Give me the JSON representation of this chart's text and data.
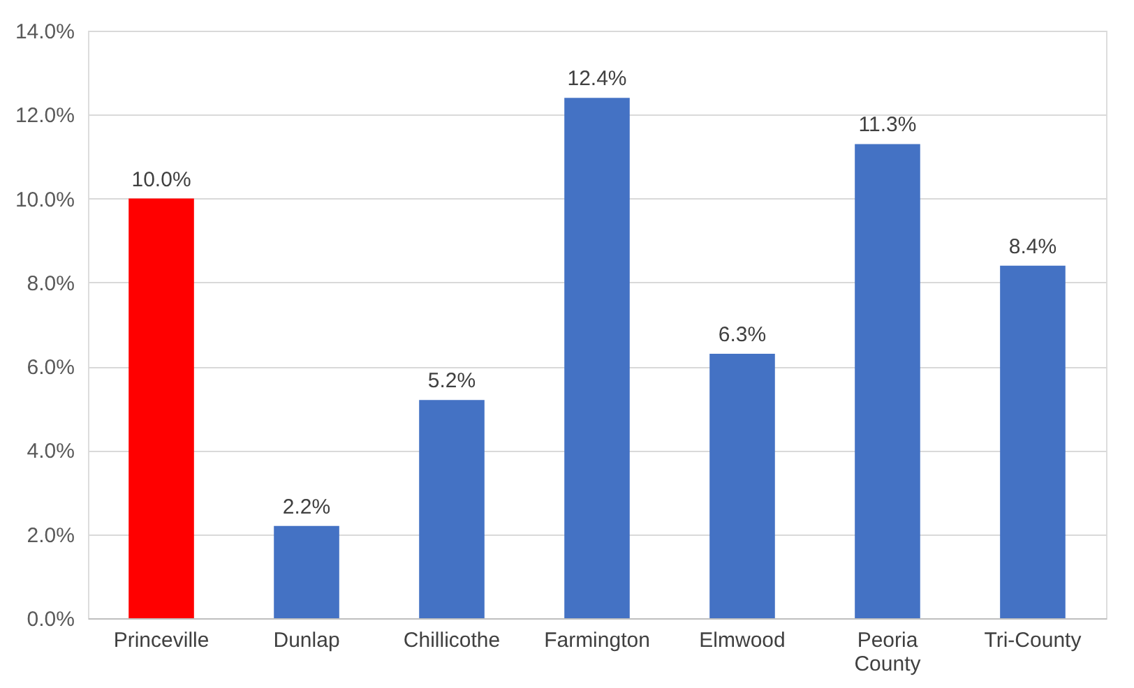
{
  "chart_data": {
    "type": "bar",
    "categories": [
      "Princeville",
      "Dunlap",
      "Chillicothe",
      "Farmington",
      "Elmwood",
      "Peoria County",
      "Tri-County"
    ],
    "values": [
      10.0,
      2.2,
      5.2,
      12.4,
      6.3,
      11.3,
      8.4
    ],
    "colors": [
      "#ff0000",
      "#4472c4",
      "#4472c4",
      "#4472c4",
      "#4472c4",
      "#4472c4",
      "#4472c4"
    ],
    "value_labels": [
      "10.0%",
      "2.2%",
      "5.2%",
      "12.4%",
      "6.3%",
      "11.3%",
      "8.4%"
    ],
    "ylim": [
      0,
      14
    ],
    "yticks": [
      {
        "value": 0,
        "label": "0.0%"
      },
      {
        "value": 2,
        "label": "2.0%"
      },
      {
        "value": 4,
        "label": "4.0%"
      },
      {
        "value": 6,
        "label": "6.0%"
      },
      {
        "value": 8,
        "label": "8.0%"
      },
      {
        "value": 10,
        "label": "10.0%"
      },
      {
        "value": 12,
        "label": "12.0%"
      },
      {
        "value": 14,
        "label": "14.0%"
      }
    ],
    "grid": "y"
  }
}
